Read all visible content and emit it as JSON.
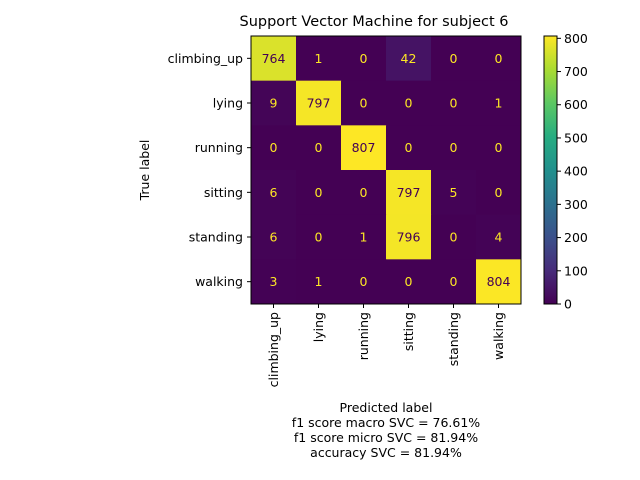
{
  "chart_data": {
    "type": "heatmap",
    "title": "Support Vector Machine for subject 6",
    "ylabel": "True label",
    "xlabel_lines": [
      "Predicted label",
      "f1 score macro SVC = 76.61%",
      "f1 score micro SVC = 81.94%",
      "accuracy SVC = 81.94%"
    ],
    "x_categories": [
      "climbing_up",
      "lying",
      "running",
      "sitting",
      "standing",
      "walking"
    ],
    "y_categories": [
      "climbing_up",
      "lying",
      "running",
      "sitting",
      "standing",
      "walking"
    ],
    "values": [
      [
        764,
        1,
        0,
        42,
        0,
        0
      ],
      [
        9,
        797,
        0,
        0,
        0,
        1
      ],
      [
        0,
        0,
        807,
        0,
        0,
        0
      ],
      [
        6,
        0,
        0,
        797,
        5,
        0
      ],
      [
        6,
        0,
        1,
        796,
        0,
        4
      ],
      [
        3,
        1,
        0,
        0,
        0,
        804
      ]
    ],
    "colormap": "viridis",
    "colorbar": {
      "range": [
        0,
        807
      ],
      "ticks": [
        0,
        100,
        200,
        300,
        400,
        500,
        600,
        700,
        800
      ]
    },
    "text_colors": {
      "on_dark": "#fde725",
      "on_light": "#440154"
    }
  }
}
